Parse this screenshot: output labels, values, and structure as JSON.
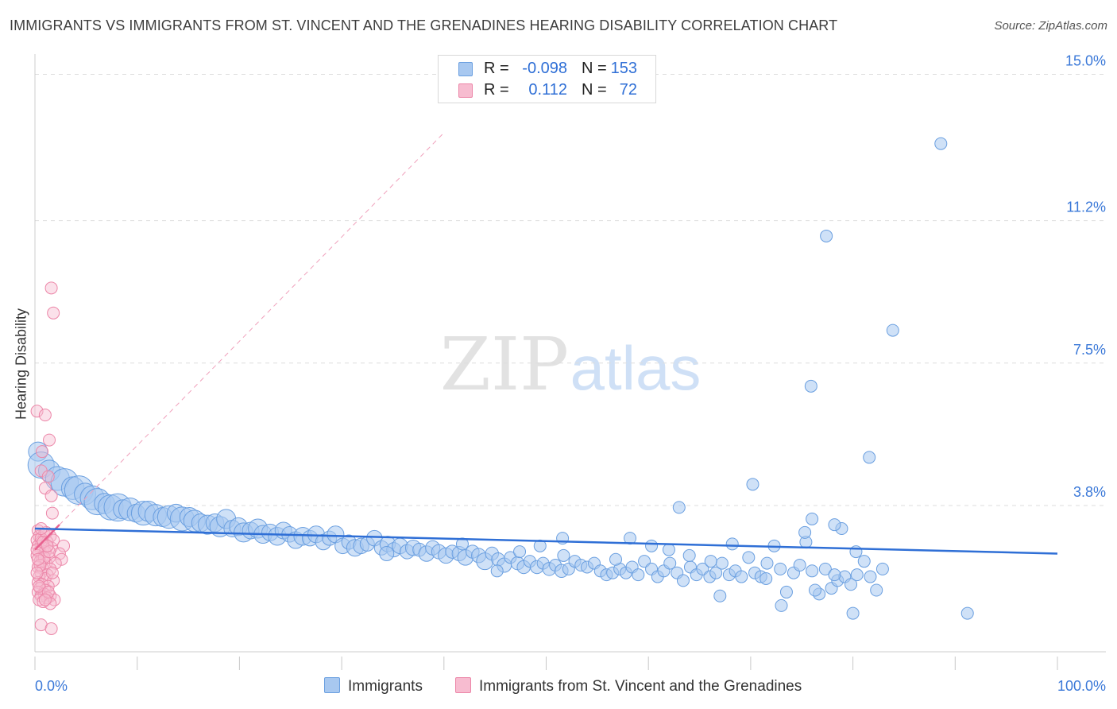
{
  "title": "IMMIGRANTS VS IMMIGRANTS FROM ST. VINCENT AND THE GRENADINES HEARING DISABILITY CORRELATION CHART",
  "source": "Source: ZipAtlas.com",
  "watermark": {
    "zip": "ZIP",
    "atlas": "atlas"
  },
  "legend": {
    "series1": {
      "r_label": "R =",
      "r_value": "-0.098",
      "n_label": "N =",
      "n_value": "153"
    },
    "series2": {
      "r_label": "R =",
      "r_value": "0.112",
      "n_label": "N =",
      "n_value": "72"
    }
  },
  "bottom_legend": {
    "series1": "Immigrants",
    "series2": "Immigrants from St. Vincent and the Grenadines"
  },
  "colors": {
    "blue_fill": "#a8c8f0",
    "blue_stroke": "#6a9fe0",
    "blue_line": "#2f6fd6",
    "pink_fill": "#f7bcd0",
    "pink_stroke": "#ec86a8",
    "pink_line": "#e8618f",
    "axis_text": "#3a78d8",
    "grid": "#dddddd"
  },
  "chart_data": {
    "type": "scatter",
    "title": "IMMIGRANTS VS IMMIGRANTS FROM ST. VINCENT AND THE GRENADINES HEARING DISABILITY CORRELATION CHART",
    "xlabel": "",
    "ylabel": "Hearing Disability",
    "xlim": [
      0,
      100
    ],
    "ylim": [
      0,
      15.3
    ],
    "x_tick_labels": [
      "0.0%",
      "100.0%"
    ],
    "y_ticks": [
      3.8,
      7.5,
      11.2,
      15.0
    ],
    "y_tick_labels": [
      "3.8%",
      "7.5%",
      "11.2%",
      "15.0%"
    ],
    "grid": true,
    "legend_position": "top-center",
    "series": [
      {
        "name": "Immigrants",
        "r": -0.098,
        "n": 153,
        "trendline": {
          "x": [
            0,
            100
          ],
          "y": [
            3.2,
            2.55
          ]
        },
        "points": [
          [
            0.3,
            5.2,
            1.6
          ],
          [
            0.6,
            4.85,
            2.2
          ],
          [
            1.4,
            4.7,
            1.8
          ],
          [
            2.2,
            4.5,
            2.0
          ],
          [
            2.9,
            4.4,
            2.3
          ],
          [
            3.7,
            4.25,
            1.9
          ],
          [
            4.3,
            4.2,
            2.4
          ],
          [
            4.9,
            4.1,
            1.8
          ],
          [
            5.6,
            4.0,
            2.0
          ],
          [
            6.1,
            3.9,
            2.2
          ],
          [
            6.8,
            3.85,
            1.7
          ],
          [
            7.4,
            3.75,
            2.1
          ],
          [
            8.1,
            3.75,
            2.3
          ],
          [
            8.6,
            3.7,
            1.6
          ],
          [
            9.3,
            3.7,
            1.9
          ],
          [
            9.9,
            3.6,
            1.5
          ],
          [
            10.6,
            3.6,
            2.0
          ],
          [
            11.1,
            3.65,
            1.7
          ],
          [
            11.8,
            3.55,
            1.8
          ],
          [
            12.5,
            3.5,
            1.6
          ],
          [
            13.1,
            3.5,
            1.9
          ],
          [
            13.8,
            3.6,
            1.5
          ],
          [
            14.4,
            3.45,
            2.0
          ],
          [
            15.1,
            3.5,
            1.6
          ],
          [
            15.6,
            3.4,
            1.8
          ],
          [
            16.2,
            3.35,
            1.5
          ],
          [
            16.9,
            3.3,
            1.6
          ],
          [
            17.6,
            3.35,
            1.5
          ],
          [
            18.1,
            3.25,
            1.7
          ],
          [
            18.7,
            3.45,
            1.6
          ],
          [
            19.3,
            3.2,
            1.4
          ],
          [
            19.9,
            3.25,
            1.5
          ],
          [
            20.4,
            3.1,
            1.6
          ],
          [
            21.1,
            3.15,
            1.4
          ],
          [
            21.8,
            3.2,
            1.6
          ],
          [
            22.3,
            3.05,
            1.5
          ],
          [
            23.0,
            3.1,
            1.4
          ],
          [
            23.7,
            3.0,
            1.5
          ],
          [
            24.3,
            3.15,
            1.4
          ],
          [
            24.9,
            3.05,
            1.3
          ],
          [
            25.5,
            2.9,
            1.4
          ],
          [
            26.2,
            3.0,
            1.5
          ],
          [
            26.9,
            2.95,
            1.3
          ],
          [
            27.5,
            3.05,
            1.4
          ],
          [
            28.2,
            2.85,
            1.3
          ],
          [
            28.8,
            2.95,
            1.2
          ],
          [
            29.4,
            3.05,
            1.4
          ],
          [
            30.1,
            2.75,
            1.3
          ],
          [
            30.7,
            2.85,
            1.2
          ],
          [
            31.3,
            2.7,
            1.4
          ],
          [
            31.9,
            2.75,
            1.3
          ],
          [
            32.5,
            2.8,
            1.2
          ],
          [
            33.2,
            2.95,
            1.3
          ],
          [
            33.9,
            2.7,
            1.2
          ],
          [
            34.5,
            2.8,
            1.3
          ],
          [
            35.1,
            2.65,
            1.2
          ],
          [
            35.7,
            2.75,
            1.3
          ],
          [
            36.4,
            2.6,
            1.2
          ],
          [
            37.0,
            2.7,
            1.3
          ],
          [
            37.6,
            2.65,
            1.1
          ],
          [
            38.3,
            2.55,
            1.3
          ],
          [
            38.9,
            2.7,
            1.2
          ],
          [
            39.5,
            2.6,
            1.2
          ],
          [
            40.2,
            2.5,
            1.3
          ],
          [
            40.8,
            2.6,
            1.1
          ],
          [
            41.5,
            2.55,
            1.2
          ],
          [
            42.1,
            2.45,
            1.3
          ],
          [
            42.8,
            2.6,
            1.1
          ],
          [
            43.4,
            2.5,
            1.2
          ],
          [
            44.0,
            2.35,
            1.4
          ],
          [
            44.7,
            2.55,
            1.1
          ],
          [
            45.3,
            2.4,
            1.1
          ],
          [
            45.9,
            2.25,
            1.2
          ],
          [
            46.5,
            2.45,
            1.0
          ],
          [
            47.2,
            2.3,
            1.1
          ],
          [
            47.8,
            2.2,
            1.1
          ],
          [
            48.4,
            2.35,
            1.0
          ],
          [
            49.1,
            2.2,
            1.1
          ],
          [
            49.7,
            2.3,
            1.0
          ],
          [
            50.3,
            2.15,
            1.1
          ],
          [
            50.9,
            2.25,
            1.0
          ],
          [
            51.5,
            2.1,
            1.1
          ],
          [
            52.2,
            2.15,
            1.0
          ],
          [
            52.8,
            2.35,
            1.0
          ],
          [
            53.4,
            2.25,
            1.0
          ],
          [
            54.0,
            2.2,
            1.0
          ],
          [
            54.7,
            2.3,
            1.0
          ],
          [
            55.3,
            2.1,
            1.0
          ],
          [
            55.9,
            2.0,
            1.0
          ],
          [
            56.5,
            2.05,
            1.0
          ],
          [
            57.2,
            2.15,
            1.0
          ],
          [
            57.8,
            2.05,
            1.0
          ],
          [
            58.4,
            2.2,
            1.0
          ],
          [
            59.0,
            2.0,
            1.0
          ],
          [
            59.6,
            2.35,
            1.0
          ],
          [
            60.3,
            2.15,
            1.0
          ],
          [
            60.9,
            1.95,
            1.0
          ],
          [
            61.5,
            2.1,
            1.0
          ],
          [
            62.1,
            2.3,
            1.0
          ],
          [
            62.8,
            2.05,
            1.0
          ],
          [
            63.4,
            1.85,
            1.0
          ],
          [
            64.1,
            2.2,
            1.0
          ],
          [
            64.7,
            2.0,
            1.0
          ],
          [
            65.3,
            2.15,
            1.0
          ],
          [
            66.0,
            1.95,
            1.0
          ],
          [
            66.6,
            2.05,
            1.0
          ],
          [
            67.2,
            2.3,
            1.0
          ],
          [
            67.9,
            2.0,
            1.0
          ],
          [
            68.5,
            2.1,
            1.0
          ],
          [
            69.1,
            1.95,
            1.0
          ],
          [
            69.8,
            2.45,
            1.0
          ],
          [
            70.4,
            2.05,
            1.0
          ],
          [
            71.0,
            1.95,
            1.0
          ],
          [
            71.6,
            2.3,
            1.0
          ],
          [
            72.3,
            2.75,
            1.0
          ],
          [
            72.9,
            2.15,
            1.0
          ],
          [
            73.5,
            1.55,
            1.0
          ],
          [
            74.2,
            2.05,
            1.0
          ],
          [
            74.8,
            2.25,
            1.0
          ],
          [
            75.4,
            2.85,
            1.0
          ],
          [
            76.0,
            2.1,
            1.0
          ],
          [
            76.7,
            1.5,
            1.0
          ],
          [
            77.3,
            2.15,
            1.0
          ],
          [
            77.9,
            1.65,
            1.0
          ],
          [
            78.5,
            1.85,
            1.0
          ],
          [
            79.2,
            1.95,
            1.0
          ],
          [
            79.8,
            1.75,
            1.0
          ],
          [
            80.4,
            2.0,
            1.0
          ],
          [
            81.1,
            2.35,
            1.0
          ],
          [
            81.7,
            1.95,
            1.0
          ],
          [
            82.3,
            1.6,
            1.0
          ],
          [
            82.9,
            2.15,
            1.0
          ],
          [
            73.0,
            1.2,
            1.0
          ],
          [
            67.0,
            1.45,
            1.0
          ],
          [
            60.3,
            2.75,
            1.0
          ],
          [
            62.0,
            2.65,
            1.0
          ],
          [
            58.2,
            2.95,
            1.0
          ],
          [
            49.4,
            2.75,
            1.0
          ],
          [
            41.8,
            2.8,
            1.0
          ],
          [
            45.2,
            2.1,
            1.0
          ],
          [
            47.4,
            2.6,
            1.0
          ],
          [
            51.7,
            2.5,
            1.0
          ],
          [
            56.8,
            2.4,
            1.0
          ],
          [
            63.0,
            3.75,
            1.0
          ],
          [
            70.2,
            4.35,
            1.0
          ],
          [
            76.3,
            1.6,
            1.0
          ],
          [
            78.2,
            2.0,
            1.0
          ],
          [
            75.3,
            3.1,
            1.0
          ],
          [
            76.0,
            3.45,
            1.0
          ],
          [
            78.9,
            3.2,
            1.0
          ],
          [
            80.3,
            2.6,
            1.0
          ],
          [
            81.6,
            5.05,
            1.0
          ],
          [
            75.9,
            6.9,
            1.0
          ],
          [
            77.4,
            10.8,
            1.0
          ],
          [
            83.9,
            8.35,
            1.0
          ],
          [
            88.6,
            13.2,
            1.0
          ],
          [
            80.0,
            1.0,
            1.0
          ],
          [
            91.2,
            1.0,
            1.0
          ],
          [
            78.2,
            3.3,
            1.0
          ],
          [
            34.4,
            2.55,
            1.2
          ],
          [
            51.6,
            2.95,
            1.0
          ],
          [
            64.0,
            2.5,
            1.0
          ],
          [
            68.2,
            2.8,
            1.0
          ],
          [
            71.5,
            1.9,
            1.0
          ],
          [
            66.1,
            2.35,
            1.0
          ]
        ]
      },
      {
        "name": "Immigrants from St. Vincent and the Grenadines",
        "r": 0.112,
        "n": 72,
        "trendline": {
          "x": [
            0,
            2.4
          ],
          "y": [
            2.65,
            3.3
          ]
        },
        "points": [
          [
            0.2,
            6.25
          ],
          [
            1.0,
            6.15
          ],
          [
            0.7,
            5.2
          ],
          [
            1.4,
            5.5
          ],
          [
            0.6,
            4.7
          ],
          [
            1.3,
            4.55
          ],
          [
            1.0,
            4.25
          ],
          [
            1.6,
            4.05
          ],
          [
            1.7,
            3.6
          ],
          [
            1.6,
            9.45
          ],
          [
            1.8,
            8.8
          ],
          [
            0.3,
            3.15
          ],
          [
            0.4,
            3.0
          ],
          [
            0.9,
            3.05
          ],
          [
            1.5,
            3.0
          ],
          [
            0.2,
            2.9
          ],
          [
            0.6,
            2.85
          ],
          [
            1.2,
            2.85
          ],
          [
            2.8,
            2.75
          ],
          [
            0.3,
            2.75
          ],
          [
            0.8,
            2.7
          ],
          [
            1.6,
            2.7
          ],
          [
            0.4,
            2.6
          ],
          [
            1.0,
            2.6
          ],
          [
            2.4,
            2.55
          ],
          [
            0.2,
            2.5
          ],
          [
            0.7,
            2.45
          ],
          [
            1.4,
            2.45
          ],
          [
            2.6,
            2.4
          ],
          [
            0.5,
            2.35
          ],
          [
            1.1,
            2.3
          ],
          [
            2.0,
            2.3
          ],
          [
            0.3,
            2.2
          ],
          [
            0.8,
            2.15
          ],
          [
            1.5,
            2.15
          ],
          [
            0.6,
            2.05
          ],
          [
            1.2,
            2.0
          ],
          [
            0.4,
            1.95
          ],
          [
            1.0,
            1.9
          ],
          [
            1.8,
            1.85
          ],
          [
            0.3,
            1.8
          ],
          [
            0.7,
            1.75
          ],
          [
            1.3,
            1.7
          ],
          [
            0.5,
            1.65
          ],
          [
            1.0,
            1.6
          ],
          [
            0.3,
            1.55
          ],
          [
            0.9,
            1.5
          ],
          [
            1.5,
            1.45
          ],
          [
            0.6,
            1.45
          ],
          [
            1.2,
            1.4
          ],
          [
            0.4,
            1.35
          ],
          [
            1.9,
            1.35
          ],
          [
            0.8,
            1.3
          ],
          [
            1.5,
            1.25
          ],
          [
            0.6,
            0.7
          ],
          [
            1.6,
            0.6
          ],
          [
            0.2,
            2.65
          ],
          [
            0.6,
            2.95
          ],
          [
            1.1,
            3.1
          ],
          [
            0.9,
            2.45
          ],
          [
            0.5,
            2.25
          ],
          [
            1.7,
            2.05
          ],
          [
            0.4,
            1.7
          ],
          [
            1.3,
            1.55
          ],
          [
            0.8,
            2.85
          ],
          [
            0.2,
            2.05
          ],
          [
            1.4,
            2.6
          ],
          [
            1.0,
            1.35
          ],
          [
            0.6,
            3.2
          ],
          [
            1.8,
            2.9
          ],
          [
            0.3,
            2.4
          ],
          [
            1.2,
            2.75
          ]
        ]
      }
    ]
  }
}
